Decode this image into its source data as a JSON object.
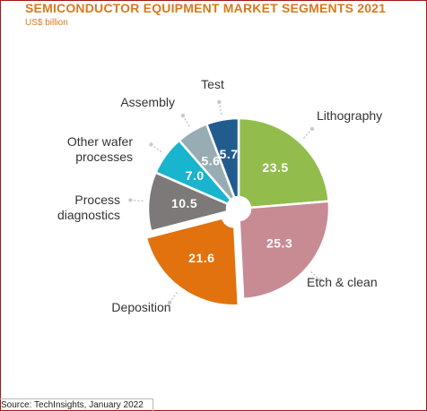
{
  "chart_data": {
    "type": "donut",
    "title": "SEMICONDUCTOR EQUIPMENT MARKET SEGMENTS 2021",
    "subtitle": "US$ billion",
    "source": "Source: TechInsights, January 2022",
    "categories": [
      "Lithography",
      "Etch & clean",
      "Deposition",
      "Process diagnostics",
      "Other wafer processes",
      "Assembly",
      "Test"
    ],
    "values": [
      23.5,
      25.3,
      21.6,
      10.5,
      7.0,
      5.6,
      5.7
    ],
    "value_labels": [
      "23.5",
      "25.3",
      "21.6",
      "10.5",
      "7.0",
      "5.6",
      "5.7"
    ],
    "colors": [
      "#92bc4c",
      "#c88b93",
      "#e2720e",
      "#7d7979",
      "#19b4cd",
      "#98acb3",
      "#215c8f"
    ]
  }
}
